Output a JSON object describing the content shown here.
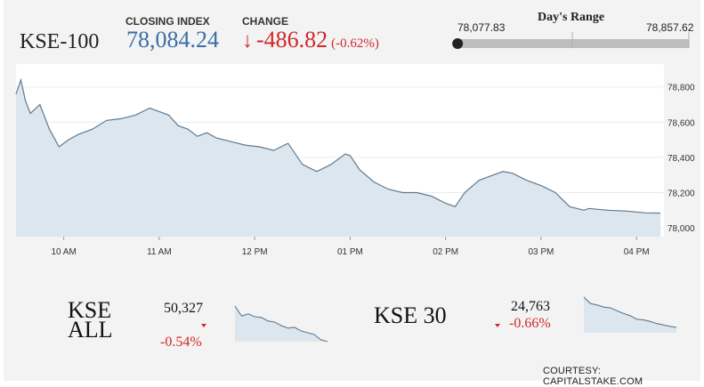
{
  "header": {
    "index_name": "KSE-100",
    "closing_label": "CLOSING INDEX",
    "closing_value": "78,084.24",
    "change_label": "CHANGE",
    "change_arrow": "↓",
    "change_value": "-486.82",
    "change_pct": "(-0.62%)",
    "change_color": "#d0282c",
    "value_color": "#3b6ea5"
  },
  "days_range": {
    "title": "Day's Range",
    "low": "78,077.83",
    "high": "78,857.62",
    "low_value": 78077.83,
    "high_value": 78857.62,
    "current_value": 78084.24
  },
  "chart_data": {
    "type": "area",
    "title": "",
    "xlabel": "",
    "ylabel": "",
    "ylim": [
      77950,
      78930
    ],
    "yticks": [
      78000,
      78200,
      78400,
      78600,
      78800
    ],
    "ytick_labels": [
      "78,000",
      "78,200",
      "78,400",
      "78,600",
      "78,800"
    ],
    "xticks": [
      10,
      11,
      12,
      13,
      14,
      15,
      16
    ],
    "xtick_labels": [
      "10 AM",
      "11 AM",
      "12 PM",
      "01 PM",
      "02 PM",
      "03 PM",
      "04 PM"
    ],
    "xlim": [
      9.5,
      16.25
    ],
    "line_color": "#5f7a90",
    "fill_color": "#dce6ee",
    "x": [
      9.5,
      9.55,
      9.6,
      9.65,
      9.75,
      9.85,
      9.95,
      10.05,
      10.15,
      10.3,
      10.45,
      10.6,
      10.75,
      10.9,
      11.0,
      11.1,
      11.2,
      11.3,
      11.4,
      11.5,
      11.6,
      11.75,
      11.9,
      12.05,
      12.2,
      12.35,
      12.5,
      12.65,
      12.8,
      12.95,
      13.0,
      13.1,
      13.25,
      13.4,
      13.55,
      13.7,
      13.85,
      14.0,
      14.1,
      14.2,
      14.35,
      14.5,
      14.6,
      14.7,
      14.85,
      15.0,
      15.15,
      15.3,
      15.45,
      15.5,
      15.7,
      15.9,
      16.0,
      16.1,
      16.25
    ],
    "y": [
      78760,
      78840,
      78720,
      78650,
      78700,
      78560,
      78460,
      78500,
      78530,
      78560,
      78610,
      78620,
      78640,
      78680,
      78660,
      78640,
      78580,
      78560,
      78520,
      78540,
      78510,
      78490,
      78470,
      78460,
      78440,
      78480,
      78360,
      78320,
      78360,
      78420,
      78410,
      78330,
      78260,
      78220,
      78200,
      78200,
      78180,
      78140,
      78120,
      78200,
      78270,
      78300,
      78320,
      78310,
      78270,
      78240,
      78200,
      78120,
      78100,
      78110,
      78100,
      78095,
      78090,
      78085,
      78084
    ]
  },
  "mini": [
    {
      "name": "KSE ALL",
      "value": "50,327",
      "change_pct": "-0.54%",
      "spark_x": [
        0,
        1,
        2,
        3,
        4,
        5,
        6,
        7,
        8,
        9,
        10,
        11,
        12,
        13,
        14
      ],
      "spark_y": [
        100,
        72,
        78,
        70,
        68,
        58,
        55,
        45,
        38,
        40,
        30,
        25,
        20,
        5,
        0
      ]
    },
    {
      "name": "KSE 30",
      "value": "24,763",
      "change_pct": "-0.66%",
      "spark_x": [
        0,
        1,
        2,
        3,
        4,
        5,
        6,
        7,
        8,
        9,
        10,
        11,
        12,
        13,
        14
      ],
      "spark_y": [
        100,
        82,
        78,
        72,
        70,
        62,
        54,
        48,
        38,
        36,
        32,
        26,
        22,
        18,
        15
      ]
    }
  ],
  "credit": "COURTESY: CAPITALSTAKE.COM"
}
